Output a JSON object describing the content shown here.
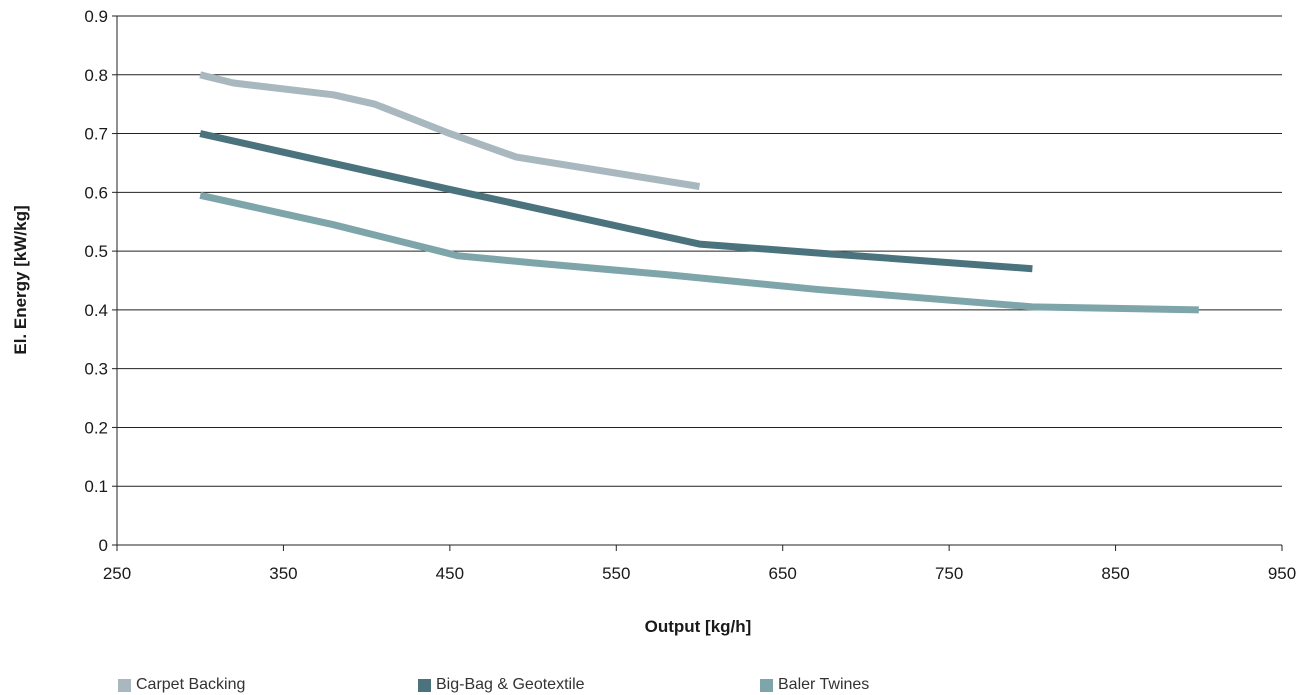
{
  "chart_data": {
    "type": "line",
    "xlabel": "Output [kg/h]",
    "ylabel": "El. Energy [kW/kg]",
    "xlim": [
      250,
      950
    ],
    "ylim": [
      0,
      0.9
    ],
    "x_ticks": [
      "250",
      "350",
      "450",
      "550",
      "650",
      "750",
      "850",
      "950"
    ],
    "y_ticks": [
      "0",
      "0.1",
      "0.2",
      "0.3",
      "0.4",
      "0.5",
      "0.6",
      "0.7",
      "0.8",
      "0.9"
    ],
    "grid": "horizontal",
    "legend_position": "bottom",
    "series": [
      {
        "name": "Carpet Backing",
        "color": "#a9b8bf",
        "x": [
          300,
          320,
          380,
          405,
          450,
          490,
          600
        ],
        "y": [
          0.8,
          0.786,
          0.766,
          0.75,
          0.7,
          0.66,
          0.61
        ]
      },
      {
        "name": "Big-Bag & Geotextile",
        "color": "#4b737d",
        "x": [
          300,
          450,
          600,
          680,
          800
        ],
        "y": [
          0.7,
          0.605,
          0.512,
          0.495,
          0.47
        ]
      },
      {
        "name": "Baler Twines",
        "color": "#7ea5aa",
        "x": [
          300,
          380,
          455,
          500,
          580,
          670,
          800,
          900
        ],
        "y": [
          0.595,
          0.545,
          0.492,
          0.48,
          0.46,
          0.435,
          0.405,
          0.4
        ]
      }
    ]
  }
}
